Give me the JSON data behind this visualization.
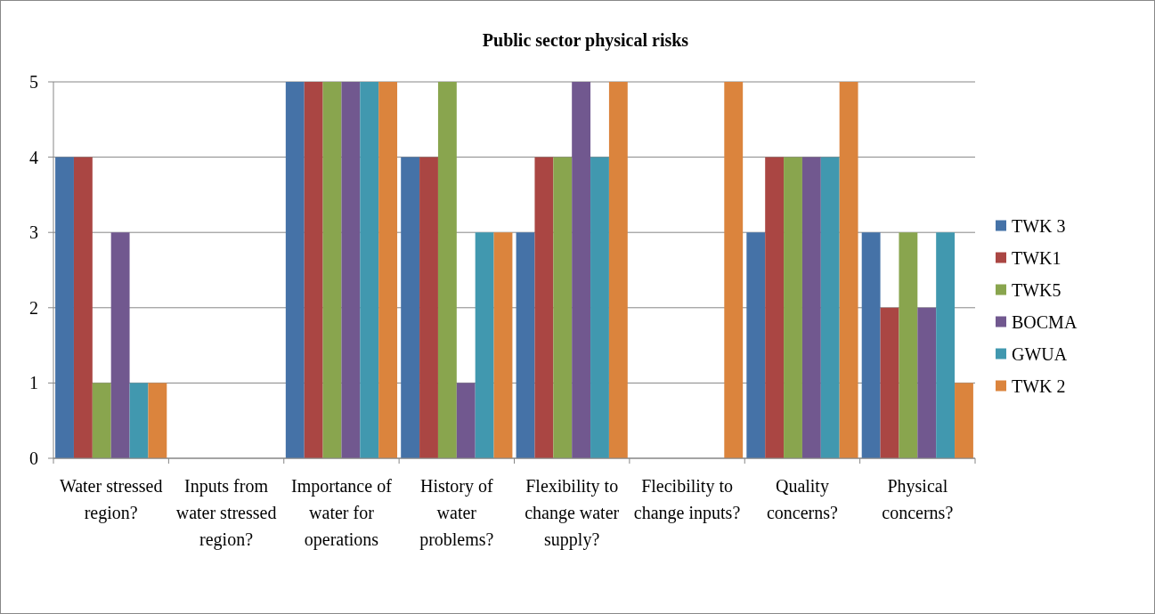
{
  "chart_data": {
    "type": "bar",
    "title": "Public sector physical risks",
    "categories": [
      "Water stressed region?",
      "Inputs from water stressed region?",
      "Importance of water for operations",
      "History of water problems?",
      "Flexibility to change water supply?",
      "Flecibility to change inputs?",
      "Quality concerns?",
      "Physical concerns?"
    ],
    "series": [
      {
        "name": "TWK 3",
        "color": "#4572a7",
        "values": [
          4,
          0,
          5,
          4,
          3,
          0,
          3,
          3
        ]
      },
      {
        "name": "TWK1",
        "color": "#aa4643",
        "values": [
          4,
          0,
          5,
          4,
          4,
          0,
          4,
          2
        ]
      },
      {
        "name": "TWK5",
        "color": "#89a54e",
        "values": [
          1,
          0,
          5,
          5,
          4,
          0,
          4,
          3
        ]
      },
      {
        "name": "BOCMA",
        "color": "#71588f",
        "values": [
          3,
          0,
          5,
          1,
          5,
          0,
          4,
          2
        ]
      },
      {
        "name": "GWUA",
        "color": "#4198af",
        "values": [
          1,
          0,
          5,
          3,
          4,
          0,
          4,
          3
        ]
      },
      {
        "name": "TWK 2",
        "color": "#db843d",
        "values": [
          1,
          0,
          5,
          3,
          5,
          5,
          5,
          1
        ]
      }
    ],
    "ylim": [
      0,
      5
    ],
    "yticks": [
      0,
      1,
      2,
      3,
      4,
      5
    ],
    "grid": "y",
    "legend": "right"
  }
}
